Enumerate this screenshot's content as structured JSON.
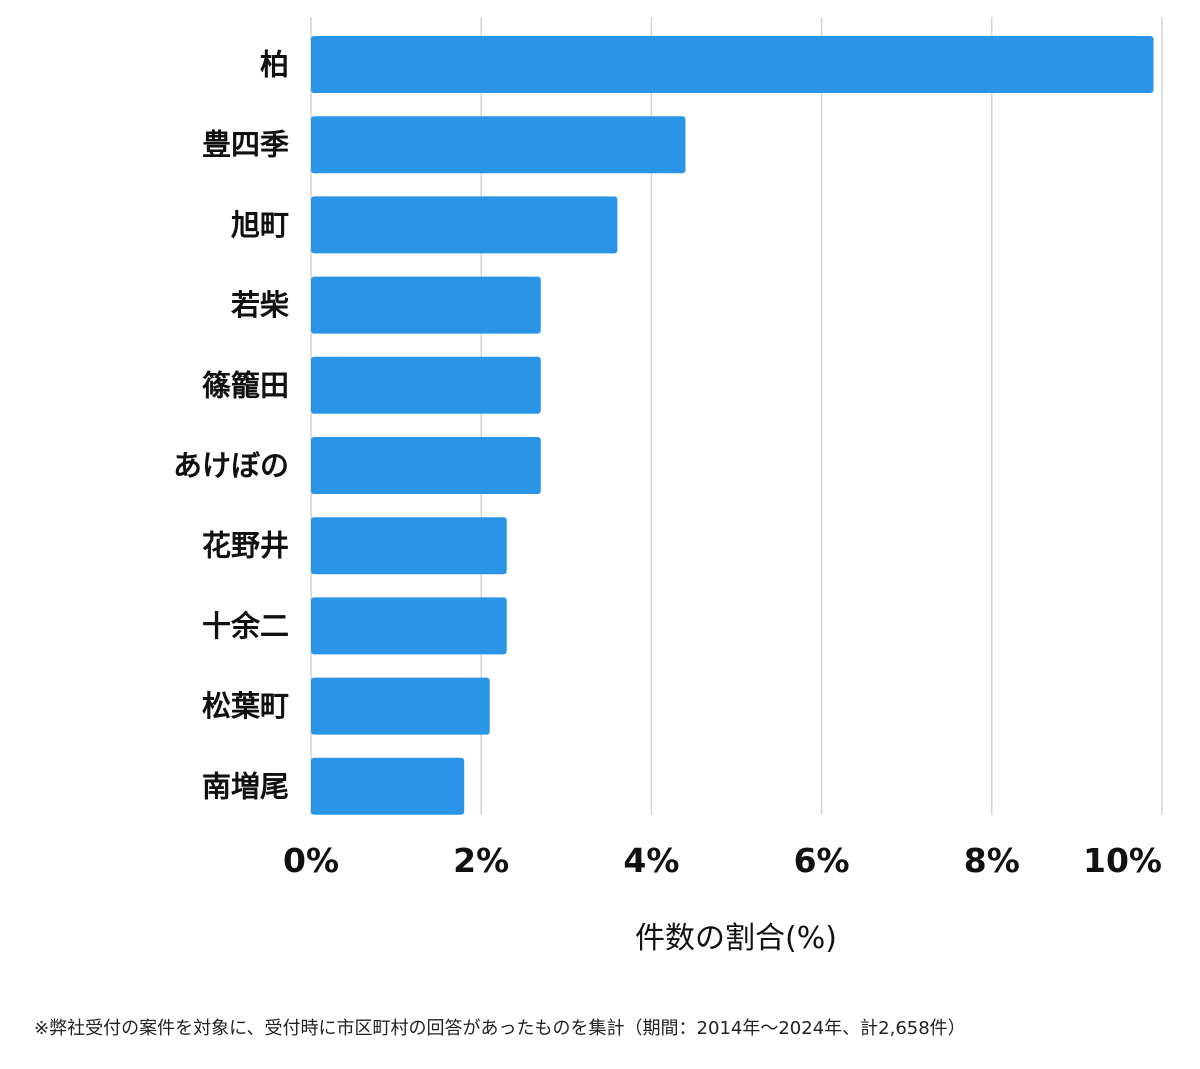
{
  "chart_data": {
    "type": "bar",
    "orientation": "horizontal",
    "categories": [
      "柏",
      "豊四季",
      "旭町",
      "若柴",
      "篠籠田",
      "あけぼの",
      "花野井",
      "十余二",
      "松葉町",
      "南増尾"
    ],
    "values": [
      9.9,
      4.4,
      3.6,
      2.7,
      2.7,
      2.7,
      2.3,
      2.3,
      2.1,
      1.8
    ],
    "xlim": [
      0,
      10
    ],
    "xticks": [
      0,
      2,
      4,
      6,
      8,
      10
    ],
    "xtick_labels": [
      "0%",
      "2%",
      "4%",
      "6%",
      "8%",
      "10%"
    ],
    "xlabel": "件数の割合(%)",
    "ylabel": "",
    "grid": "vertical",
    "bar_color": "#2a95e6",
    "grid_color": "#d4d4d4"
  },
  "footnote": "※弊社受付の案件を対象に、受付時に市区町村の回答があったものを集計（期間：2014年～2024年、計2,658件）"
}
